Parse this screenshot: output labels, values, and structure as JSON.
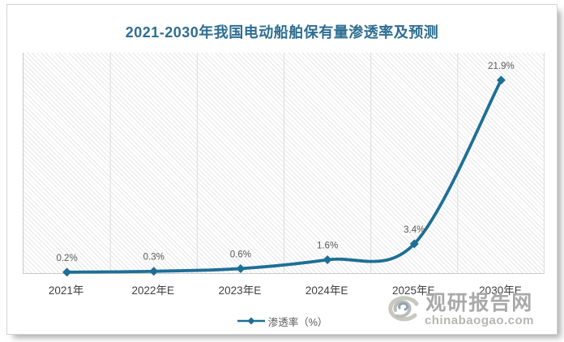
{
  "title": "2021-2030年我国电动船舶保有量渗透率及预测",
  "chart_data": {
    "type": "line",
    "title": "2021-2030年我国电动船舶保有量渗透率及预测",
    "categories": [
      "2021年",
      "2022年E",
      "2023年E",
      "2024年E",
      "2025年E",
      "2030年E"
    ],
    "series": [
      {
        "name": "渗透率（%）",
        "values": [
          0.2,
          0.3,
          0.6,
          1.6,
          3.4,
          21.9
        ]
      }
    ],
    "data_labels": [
      "0.2%",
      "0.3%",
      "0.6%",
      "1.6%",
      "3.4%",
      "21.9%"
    ],
    "xlabel": "",
    "ylabel": "",
    "ylim": [
      0,
      25
    ],
    "grid": "vertical-only",
    "hatched_background": true,
    "smooth_line": true,
    "marker": "diamond",
    "legend_position": "bottom-center"
  },
  "legend": {
    "label": "渗透率（%）"
  },
  "watermark": {
    "name": "观研报告网",
    "domain": "chinabaogao.com"
  },
  "colors": {
    "line": "#1e6f96",
    "title": "#2e6e91",
    "data_label": "#595959",
    "axis_label": "#404040",
    "gridline": "#dcdcdc",
    "axis_line": "#c9c9c9",
    "watermark_text": "#a9a9a9",
    "panel_border": "#d4d4d4"
  }
}
